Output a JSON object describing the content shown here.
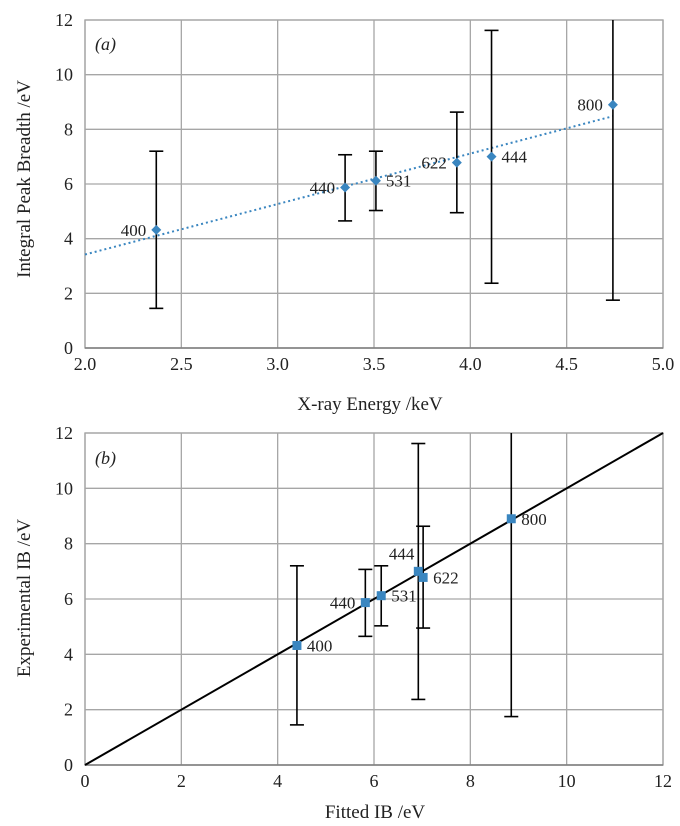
{
  "chart_data": [
    {
      "type": "scatter",
      "panel_label": "(a)",
      "xlabel": "X-ray Energy /keV",
      "ylabel": "Integral Peak Breadth /eV",
      "xlim": [
        2.0,
        5.0
      ],
      "ylim": [
        0,
        12
      ],
      "xticks": [
        "2.0",
        "2.5",
        "3.0",
        "3.5",
        "4.0",
        "4.5",
        "5.0"
      ],
      "yticks": [
        "0",
        "2",
        "4",
        "6",
        "8",
        "10",
        "12"
      ],
      "grid": true,
      "marker_color": "#3a86c0",
      "trendline": {
        "style": "dotted",
        "color": "#3a86c0",
        "x": [
          2.0,
          4.74
        ],
        "y": [
          3.42,
          8.48
        ]
      },
      "points": [
        {
          "label": "400",
          "x": 2.37,
          "y": 4.32,
          "err_low": 1.45,
          "err_high": 7.2
        },
        {
          "label": "440",
          "x": 3.35,
          "y": 5.87,
          "err_low": 4.65,
          "err_high": 7.07
        },
        {
          "label": "531",
          "x": 3.51,
          "y": 6.12,
          "err_low": 5.03,
          "err_high": 7.2
        },
        {
          "label": "622",
          "x": 3.93,
          "y": 6.78,
          "err_low": 4.95,
          "err_high": 8.63
        },
        {
          "label": "444",
          "x": 4.11,
          "y": 7.0,
          "err_low": 2.37,
          "err_high": 11.62
        },
        {
          "label": "800",
          "x": 4.74,
          "y": 8.9,
          "err_low": 1.75,
          "err_high": 12.0
        }
      ]
    },
    {
      "type": "scatter",
      "panel_label": "(b)",
      "xlabel": "Fitted IB /eV",
      "ylabel": "Experimental IB /eV",
      "xlim": [
        0,
        12
      ],
      "ylim": [
        0,
        12
      ],
      "xticks": [
        "0",
        "2",
        "4",
        "6",
        "8",
        "10",
        "12"
      ],
      "yticks": [
        "0",
        "2",
        "4",
        "6",
        "8",
        "10",
        "12"
      ],
      "grid": true,
      "marker_color": "#3a86c0",
      "reference_line": {
        "color": "#000000",
        "x": [
          0,
          12
        ],
        "y": [
          0,
          12
        ]
      },
      "points": [
        {
          "label": "400",
          "x": 4.4,
          "y": 4.32,
          "err_low": 1.45,
          "err_high": 7.2
        },
        {
          "label": "440",
          "x": 5.82,
          "y": 5.87,
          "err_low": 4.65,
          "err_high": 7.07
        },
        {
          "label": "531",
          "x": 6.15,
          "y": 6.12,
          "err_low": 5.03,
          "err_high": 7.2
        },
        {
          "label": "444",
          "x": 6.92,
          "y": 7.0,
          "err_low": 2.37,
          "err_high": 11.62
        },
        {
          "label": "622",
          "x": 7.02,
          "y": 6.78,
          "err_low": 4.95,
          "err_high": 8.63
        },
        {
          "label": "800",
          "x": 8.85,
          "y": 8.9,
          "err_low": 1.75,
          "err_high": 12.0
        }
      ]
    }
  ]
}
